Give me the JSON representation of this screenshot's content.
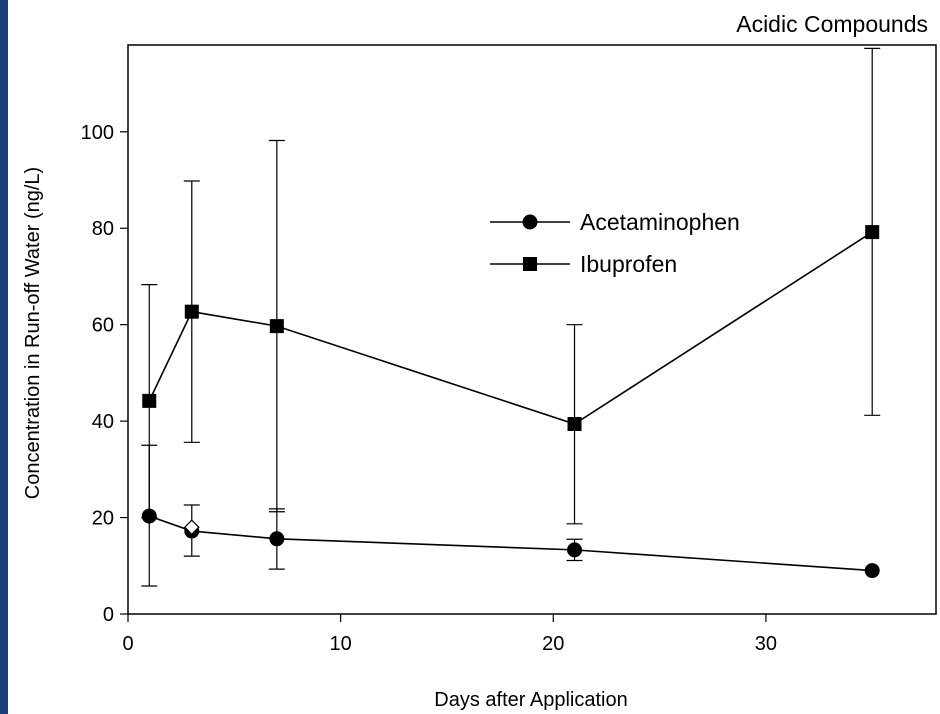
{
  "colors": {
    "left_strip": "#1f3d7a",
    "ink": "#000000",
    "background": "#ffffff",
    "hollow_marker": "#ffffff"
  },
  "chart_data": {
    "type": "line",
    "title": "Acidic Compounds",
    "xlabel": "Days after Application",
    "ylabel": "Concentration in Run-off Water (ng/L)",
    "xlim": [
      0,
      38
    ],
    "ylim": [
      0,
      118
    ],
    "xticks": [
      0,
      10,
      20,
      30
    ],
    "yticks": [
      0,
      20,
      40,
      60,
      80,
      100
    ],
    "grid": false,
    "legend_position": "upper-center",
    "series": [
      {
        "name": "Acetaminophen",
        "marker": "circle",
        "points": [
          {
            "x": 1,
            "y": 20.3,
            "err_low": 5.8,
            "err_high": 35.0
          },
          {
            "x": 3,
            "y": 17.2,
            "err_low": 12.0,
            "err_high": 22.6
          },
          {
            "x": 7,
            "y": 15.6,
            "err_low": 9.3,
            "err_high": 21.8
          },
          {
            "x": 21,
            "y": 13.3,
            "err_low": 11.1,
            "err_high": 15.5
          },
          {
            "x": 35,
            "y": 9.0,
            "err_low": null,
            "err_high": null
          }
        ]
      },
      {
        "name": "Ibuprofen",
        "marker": "square",
        "points": [
          {
            "x": 1,
            "y": 44.2,
            "err_low": 20.0,
            "err_high": 68.3
          },
          {
            "x": 3,
            "y": 62.7,
            "err_low": 35.6,
            "err_high": 89.8
          },
          {
            "x": 7,
            "y": 59.7,
            "err_low": 21.2,
            "err_high": 98.2
          },
          {
            "x": 21,
            "y": 39.4,
            "err_low": 18.7,
            "err_high": 60.0
          },
          {
            "x": 35,
            "y": 79.2,
            "err_low": 41.2,
            "err_high": 117.3
          }
        ]
      }
    ],
    "annotations": [
      {
        "type": "hollow-diamond",
        "x": 3,
        "y": 18.0
      }
    ]
  }
}
